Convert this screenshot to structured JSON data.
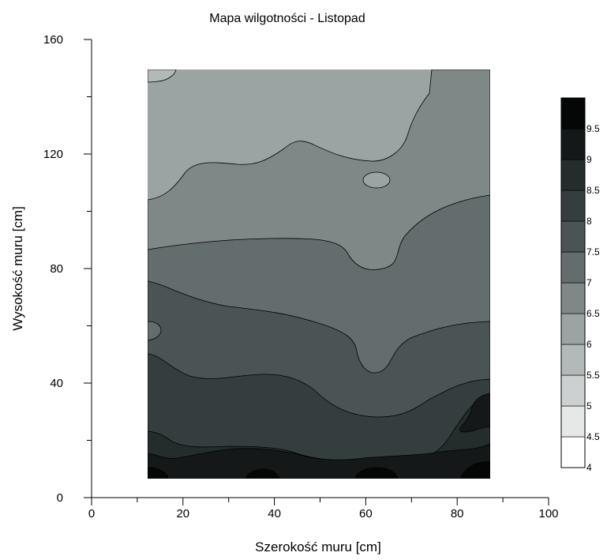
{
  "chart_data": {
    "type": "contour",
    "title": "Mapa wilgotności - Listopad",
    "xlabel": "Szerokość muru [cm]",
    "ylabel": "Wysokość muru [cm]",
    "xlim": [
      0,
      100
    ],
    "ylim": [
      0,
      160
    ],
    "x_ticks": [
      "0",
      "20",
      "40",
      "60",
      "80",
      "100"
    ],
    "y_ticks": [
      "0",
      "40",
      "80",
      "120",
      "160"
    ],
    "data_extent": {
      "x": [
        12.5,
        87.5
      ],
      "y": [
        7.5,
        150
      ]
    },
    "colorbar": {
      "levels": [
        4,
        4.5,
        5,
        5.5,
        6,
        6.5,
        7,
        7.5,
        8,
        8.5,
        9,
        9.5
      ],
      "labels": [
        "4",
        "4.5",
        "5",
        "5.5",
        "6",
        "6.5",
        "7",
        "7.5",
        "8",
        "8.5",
        "9",
        "9.5"
      ],
      "colors": [
        "#ffffff",
        "#e6e8e8",
        "#cdd0d0",
        "#b3b8b8",
        "#9ca3a3",
        "#7f8787",
        "#646d6d",
        "#4b5454",
        "#353e3e",
        "#252c2c",
        "#141818",
        "#050606"
      ]
    },
    "contour_bands": [
      {
        "level": 5.5,
        "color": "#b3b8b8",
        "region": "upper-left corner, small patch"
      },
      {
        "level": 6,
        "color": "#9ca3a3",
        "region": "top of wall, y above ~105 cm (left/center)"
      },
      {
        "level": 6.5,
        "color": "#7f8787",
        "region": "y ~88 to ~118 cm, extends to top on right"
      },
      {
        "level": 7,
        "color": "#646d6d",
        "region": "y ~62 to ~90 cm"
      },
      {
        "level": 7.5,
        "color": "#4b5454",
        "region": "y ~42 to ~75 cm, dips near x=62"
      },
      {
        "level": 8,
        "color": "#353e3e",
        "region": "y ~25 to ~50 cm"
      },
      {
        "level": 8.5,
        "color": "#252c2c",
        "region": "y ~12 to ~30 cm"
      },
      {
        "level": 9,
        "color": "#141818",
        "region": "bottom band y ~7 to ~15 cm"
      },
      {
        "level": 9.5,
        "color": "#050606",
        "region": "local maxima at bottom near x=13, 37, 62, 85"
      }
    ],
    "isolines": [
      5.5,
      6,
      6.5,
      7,
      7.5,
      8,
      8.5,
      9,
      9.5
    ]
  }
}
